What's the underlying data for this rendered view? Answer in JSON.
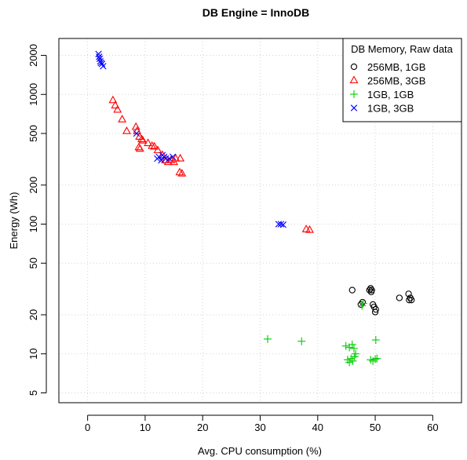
{
  "chart_data": {
    "type": "scatter",
    "title": "DB Engine = InnoDB",
    "xlabel": "Avg. CPU consumption (%)",
    "ylabel": "Energy (Wh)",
    "xlim": [
      -5,
      65
    ],
    "ylim": [
      4.2,
      2700
    ],
    "y_scale": "log",
    "x_ticks": [
      0,
      10,
      20,
      30,
      40,
      50,
      60
    ],
    "y_ticks": [
      5,
      10,
      20,
      50,
      100,
      200,
      500,
      1000,
      2000
    ],
    "grid": true,
    "legend": {
      "title": "DB Memory, Raw data",
      "placement": "top-right",
      "entries": [
        "256MB, 1GB",
        "256MB, 3GB",
        "1GB, 1GB",
        "1GB, 3GB"
      ]
    },
    "series": [
      {
        "name": "256MB, 1GB",
        "marker": "circle",
        "color": "#000000",
        "points": [
          [
            46.0,
            31
          ],
          [
            49.0,
            31
          ],
          [
            49.2,
            32
          ],
          [
            49.4,
            31
          ],
          [
            49.3,
            30
          ],
          [
            49.6,
            24
          ],
          [
            49.8,
            23
          ],
          [
            50.1,
            22
          ],
          [
            50.0,
            21
          ],
          [
            47.8,
            25
          ],
          [
            47.5,
            24
          ],
          [
            54.2,
            27
          ],
          [
            55.8,
            29
          ],
          [
            55.9,
            26
          ],
          [
            56.1,
            27
          ],
          [
            56.3,
            26
          ]
        ]
      },
      {
        "name": "256MB, 3GB",
        "marker": "triangle",
        "color": "#ff0000",
        "points": [
          [
            4.4,
            900
          ],
          [
            4.8,
            820
          ],
          [
            5.2,
            760
          ],
          [
            6.0,
            640
          ],
          [
            6.8,
            520
          ],
          [
            8.4,
            560
          ],
          [
            8.6,
            520
          ],
          [
            9.0,
            470
          ],
          [
            9.4,
            450
          ],
          [
            9.6,
            440
          ],
          [
            8.9,
            390
          ],
          [
            9.1,
            380
          ],
          [
            10.5,
            420
          ],
          [
            11.2,
            400
          ],
          [
            11.6,
            395
          ],
          [
            12.2,
            370
          ],
          [
            13.0,
            340
          ],
          [
            13.5,
            310
          ],
          [
            14.0,
            300
          ],
          [
            14.5,
            310
          ],
          [
            15.0,
            300
          ],
          [
            15.3,
            320
          ],
          [
            16.1,
            320
          ],
          [
            16.0,
            250
          ],
          [
            16.4,
            245
          ],
          [
            38.0,
            91
          ],
          [
            38.6,
            90
          ]
        ]
      },
      {
        "name": "1GB, 1GB",
        "marker": "plus",
        "color": "#00cc00",
        "points": [
          [
            31.3,
            13
          ],
          [
            37.2,
            12.5
          ],
          [
            50.1,
            12.8
          ],
          [
            44.9,
            11.5
          ],
          [
            45.5,
            11.2
          ],
          [
            46.0,
            11.8
          ],
          [
            46.3,
            11.0
          ],
          [
            45.2,
            9.0
          ],
          [
            45.5,
            8.6
          ],
          [
            45.8,
            9.2
          ],
          [
            46.1,
            8.8
          ],
          [
            46.4,
            9.5
          ],
          [
            46.6,
            10.0
          ],
          [
            49.2,
            9.0
          ],
          [
            49.6,
            8.8
          ],
          [
            50.0,
            9.1
          ],
          [
            50.3,
            9.2
          ],
          [
            47.7,
            23.5
          ],
          [
            47.9,
            24.5
          ]
        ]
      },
      {
        "name": "1GB, 3GB",
        "marker": "x",
        "color": "#0000ff",
        "points": [
          [
            1.9,
            2050
          ],
          [
            2.0,
            1950
          ],
          [
            2.1,
            1880
          ],
          [
            2.2,
            1800
          ],
          [
            2.3,
            1750
          ],
          [
            2.5,
            1720
          ],
          [
            2.7,
            1650
          ],
          [
            8.5,
            500
          ],
          [
            12.1,
            320
          ],
          [
            12.4,
            330
          ],
          [
            12.8,
            310
          ],
          [
            13.0,
            340
          ],
          [
            13.3,
            330
          ],
          [
            13.6,
            320
          ],
          [
            14.2,
            320
          ],
          [
            14.8,
            330
          ],
          [
            33.2,
            100
          ],
          [
            33.6,
            100
          ],
          [
            34.0,
            99
          ]
        ]
      }
    ]
  }
}
